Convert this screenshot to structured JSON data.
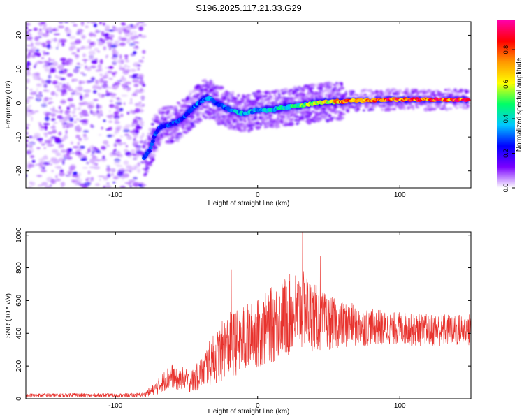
{
  "figure": {
    "title": "S196.2025.117.21.33.G29"
  },
  "colors": {
    "snr_line": "#e8322d",
    "axis": "#000000",
    "background": "#ffffff",
    "colormap": [
      "#ffffff",
      "#7a00ff",
      "#0000ff",
      "#00c8ff",
      "#00ff66",
      "#ffff00",
      "#ff9900",
      "#ff0000",
      "#ff00aa"
    ]
  },
  "chart_data": [
    {
      "type": "heatmap",
      "xlabel": "Height of straight line (km)",
      "ylabel": "Frequency (Hz)",
      "xlim": [
        -163,
        150
      ],
      "ylim": [
        -25,
        24
      ],
      "xticks": [
        -100,
        0,
        100
      ],
      "yticks": [
        -20,
        -10,
        0,
        10,
        20
      ],
      "xtick_labels": [
        "-100",
        "0",
        "100"
      ],
      "ytick_labels": [
        "-20",
        "-10",
        "0",
        "10",
        "20"
      ],
      "colorbar": {
        "label": "Normalized spectral amplitude",
        "range": [
          0,
          0.97
        ],
        "ticks": [
          0,
          0.2,
          0.4,
          0.6,
          0.8
        ],
        "tick_labels": [
          "0.0",
          "0.2",
          "0.4",
          "0.6",
          "0.8"
        ]
      },
      "noise_region_x": [
        -163,
        -80
      ],
      "ridge": {
        "x": [
          -80,
          -76,
          -72,
          -68,
          -64,
          -60,
          -56,
          -52,
          -48,
          -44,
          -40,
          -36,
          -32,
          -28,
          -24,
          -20,
          -16,
          -12,
          -8,
          -4,
          0,
          4,
          8,
          12,
          16,
          20,
          24,
          28,
          32,
          36,
          40,
          44,
          48,
          52,
          56,
          60,
          64,
          68,
          72,
          76,
          80,
          84,
          88,
          92,
          96,
          100,
          104,
          108,
          112,
          116,
          120,
          124,
          128,
          132,
          136,
          140,
          144,
          148
        ],
        "y": [
          -16,
          -14,
          -9,
          -7,
          -6.5,
          -6,
          -5.5,
          -4,
          -2.5,
          -1,
          0.5,
          1.5,
          1,
          -0.5,
          -1,
          -2,
          -2.5,
          -3,
          -3,
          -2.5,
          -2,
          -2.2,
          -2,
          -1.8,
          -1.5,
          -1.3,
          -1,
          -0.8,
          -0.6,
          -0.3,
          0,
          0.2,
          0.3,
          0.4,
          0.5,
          0.5,
          0.6,
          0.7,
          0.8,
          0.8,
          0.8,
          0.9,
          0.9,
          1,
          1,
          1,
          1,
          1,
          1,
          1,
          1,
          1,
          1,
          1,
          1,
          1,
          1,
          1
        ],
        "amplitude": [
          0.3,
          0.3,
          0.3,
          0.3,
          0.3,
          0.3,
          0.3,
          0.3,
          0.3,
          0.35,
          0.35,
          0.35,
          0.35,
          0.35,
          0.35,
          0.35,
          0.4,
          0.4,
          0.4,
          0.4,
          0.4,
          0.4,
          0.45,
          0.45,
          0.45,
          0.5,
          0.5,
          0.5,
          0.55,
          0.6,
          0.6,
          0.65,
          0.7,
          0.75,
          0.8,
          0.8,
          0.85,
          0.85,
          0.85,
          0.85,
          0.9,
          0.9,
          0.9,
          0.9,
          0.9,
          0.9,
          0.9,
          0.9,
          0.9,
          0.9,
          0.9,
          0.9,
          0.9,
          0.9,
          0.9,
          0.9,
          0.9,
          0.9
        ]
      }
    },
    {
      "type": "line",
      "xlabel": "Height of straight line (km)",
      "ylabel": "SNR (10 * v/v)",
      "xlim": [
        -163,
        150
      ],
      "ylim": [
        0,
        1020
      ],
      "xticks": [
        -100,
        0,
        100
      ],
      "yticks": [
        0,
        200,
        400,
        600,
        800,
        1000
      ],
      "xtick_labels": [
        "-100",
        "0",
        "100"
      ],
      "ytick_labels": [
        "0",
        "200",
        "400",
        "600",
        "800",
        "1000"
      ],
      "series": [
        {
          "x": [
            -163,
            -150,
            -140,
            -130,
            -120,
            -110,
            -100,
            -90,
            -80,
            -72,
            -68,
            -64,
            -60,
            -56,
            -52,
            -48,
            -44,
            -40,
            -36,
            -32,
            -28,
            -24,
            -20,
            -16,
            -12,
            -8,
            -4,
            0,
            4,
            8,
            12,
            16,
            20,
            24,
            28,
            32,
            36,
            40,
            44,
            48,
            52,
            56,
            60,
            64,
            68,
            72,
            76,
            80,
            84,
            88,
            92,
            96,
            100,
            104,
            108,
            112,
            116,
            120,
            124,
            128,
            132,
            136,
            140,
            144,
            150
          ],
          "values": [
            20,
            22,
            20,
            25,
            20,
            22,
            20,
            22,
            25,
            60,
            90,
            120,
            140,
            110,
            130,
            100,
            120,
            160,
            200,
            230,
            260,
            300,
            330,
            340,
            360,
            370,
            380,
            400,
            420,
            440,
            460,
            480,
            500,
            520,
            530,
            540,
            520,
            500,
            480,
            470,
            460,
            460,
            450,
            450,
            450,
            440,
            440,
            440,
            440,
            430,
            430,
            430,
            430,
            430,
            420,
            420,
            420,
            420,
            420,
            420,
            420,
            420,
            420,
            420,
            420
          ],
          "spread": [
            12,
            12,
            12,
            12,
            12,
            12,
            12,
            12,
            12,
            40,
            55,
            70,
            75,
            60,
            70,
            60,
            80,
            100,
            130,
            150,
            170,
            190,
            200,
            200,
            210,
            210,
            210,
            210,
            220,
            230,
            240,
            250,
            250,
            250,
            250,
            240,
            230,
            210,
            190,
            170,
            160,
            150,
            140,
            140,
            130,
            120,
            120,
            110,
            110,
            110,
            100,
            100,
            100,
            100,
            100,
            100,
            100,
            100,
            100,
            100,
            100,
            100,
            100,
            100,
            100
          ]
        }
      ],
      "peaks": [
        {
          "x": -18.5,
          "y": 790
        },
        {
          "x": 31.5,
          "y": 1020
        },
        {
          "x": 44,
          "y": 870
        }
      ]
    }
  ]
}
